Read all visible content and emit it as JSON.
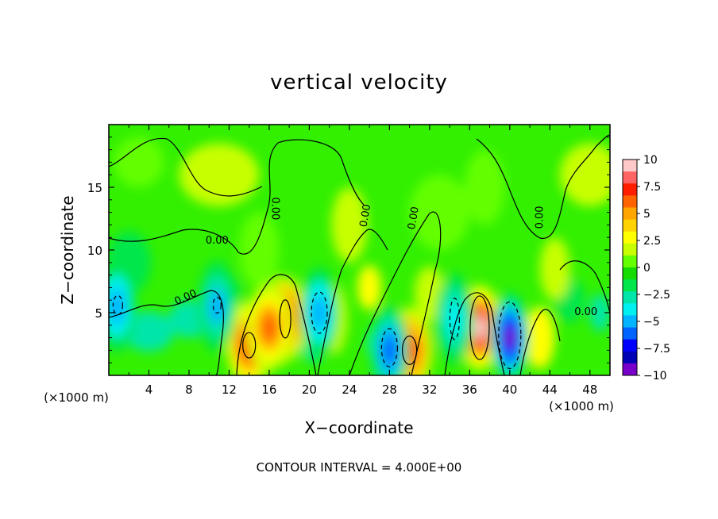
{
  "chart_data": {
    "type": "heatmap",
    "title": "vertical velocity",
    "xlabel": "X−coordinate",
    "ylabel": "Z−coordinate",
    "x_unit_label": "(×1000 m)",
    "footer": "CONTOUR INTERVAL = 4.000E+00",
    "xlim": [
      0,
      50
    ],
    "ylim": [
      0,
      20
    ],
    "x_ticks": [
      "4",
      "8",
      "12",
      "16",
      "20",
      "24",
      "28",
      "32",
      "36",
      "40",
      "44",
      "48"
    ],
    "x_tick_values": [
      4,
      8,
      12,
      16,
      20,
      24,
      28,
      32,
      36,
      40,
      44,
      48
    ],
    "y_ticks": [
      "5",
      "10",
      "15"
    ],
    "y_tick_values": [
      5,
      10,
      15
    ],
    "colorbar": {
      "range": [
        -10,
        10
      ],
      "labels": [
        "10",
        "7.5",
        "5",
        "2.5",
        "0",
        "−2.5",
        "−5",
        "−7.5",
        "−10"
      ],
      "label_values": [
        10,
        7.5,
        5,
        2.5,
        0,
        -2.5,
        -5,
        -7.5,
        -10
      ],
      "colors_top_to_bottom": [
        "#ffc8c8",
        "#ff6464",
        "#ff1e00",
        "#ff6400",
        "#ffa500",
        "#ffd200",
        "#ffff00",
        "#c8ff00",
        "#64ff00",
        "#14dc00",
        "#00e64b",
        "#00e6aa",
        "#00f0f0",
        "#00b4ff",
        "#0064ff",
        "#0000ff",
        "#0000b4",
        "#7800c8"
      ]
    },
    "contour_labels": [
      "0.00",
      "0.00",
      "0.00",
      "0.00",
      "0.00",
      "0.00",
      "0.00"
    ],
    "features": [
      {
        "kind": "max",
        "x": 37,
        "z": 3.8,
        "value": 10
      },
      {
        "kind": "max",
        "x": 17.5,
        "z": 4.5,
        "value": 8.5
      },
      {
        "kind": "max",
        "x": 14,
        "z": 2.5,
        "value": 7.5
      },
      {
        "kind": "max",
        "x": 30,
        "z": 2,
        "value": 7
      },
      {
        "kind": "max",
        "x": 16,
        "z": 3.8,
        "value": 6
      },
      {
        "kind": "min",
        "x": 40,
        "z": 3,
        "value": -9
      },
      {
        "kind": "min",
        "x": 28,
        "z": 2,
        "value": -6
      },
      {
        "kind": "min",
        "x": 21,
        "z": 5,
        "value": -5
      },
      {
        "kind": "min",
        "x": 0.8,
        "z": 5.5,
        "value": -5
      },
      {
        "kind": "min",
        "x": 10.8,
        "z": 5.5,
        "value": -4.5
      },
      {
        "kind": "min",
        "x": 34.5,
        "z": 4.5,
        "value": -4
      }
    ]
  }
}
